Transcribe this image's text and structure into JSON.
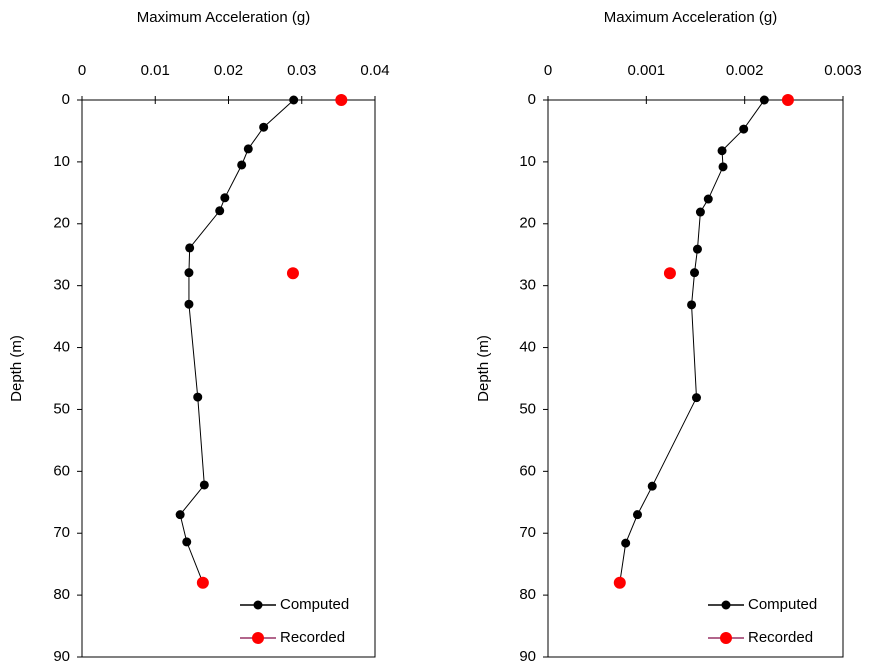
{
  "chart_data": [
    {
      "type": "scatter",
      "title": "Maximum Acceleration (g)",
      "y_label": "Depth (m)",
      "xlim": [
        0,
        0.04
      ],
      "xticks": [
        0,
        0.01,
        0.02,
        0.03,
        0.04
      ],
      "ylim": [
        0,
        90
      ],
      "yticks": [
        0,
        10,
        20,
        30,
        40,
        50,
        60,
        70,
        80,
        90
      ],
      "y_reversed": true,
      "legend": "lower right",
      "series": [
        {
          "name": "Computed",
          "color": "#000000",
          "line": true,
          "x": [
            0.0289,
            0.0248,
            0.0227,
            0.0218,
            0.0195,
            0.0188,
            0.0147,
            0.0146,
            0.0146,
            0.0158,
            0.0167,
            0.0134,
            0.0143,
            0.0165
          ],
          "values": [
            0,
            4.4,
            7.9,
            10.5,
            15.8,
            17.9,
            23.9,
            27.9,
            33,
            48,
            62.2,
            67,
            71.4,
            78
          ]
        },
        {
          "name": "Recorded",
          "color": "#ff0000",
          "line": false,
          "line_color": "#993366",
          "x": [
            0.0354,
            0.0288,
            0.0165
          ],
          "values": [
            0,
            28,
            78
          ]
        }
      ]
    },
    {
      "type": "scatter",
      "title": "Maximum Acceleration (g)",
      "y_label": "Depth (m)",
      "xlim": [
        0,
        0.003
      ],
      "xticks": [
        0,
        0.001,
        0.002,
        0.003
      ],
      "ylim": [
        0,
        90
      ],
      "yticks": [
        0,
        10,
        20,
        30,
        40,
        50,
        60,
        70,
        80,
        90
      ],
      "y_reversed": true,
      "legend": "lower right",
      "series": [
        {
          "name": "Computed",
          "color": "#000000",
          "line": true,
          "x": [
            0.0022,
            0.00199,
            0.00177,
            0.00178,
            0.00163,
            0.00155,
            0.00152,
            0.00149,
            0.00146,
            0.00151,
            0.00106,
            0.00091,
            0.00079,
            0.00073
          ],
          "values": [
            0,
            4.7,
            8.2,
            10.8,
            16,
            18.1,
            24.1,
            27.9,
            33.1,
            48.1,
            62.4,
            67,
            71.6,
            78
          ]
        },
        {
          "name": "Recorded",
          "color": "#ff0000",
          "line": false,
          "line_color": "#993366",
          "x": [
            0.00244,
            0.00124,
            0.00073
          ],
          "values": [
            0,
            28,
            78
          ]
        }
      ]
    }
  ]
}
